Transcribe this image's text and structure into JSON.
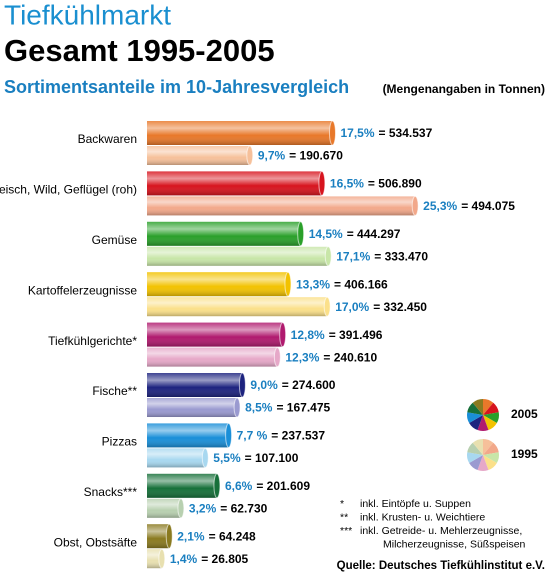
{
  "chart_data": {
    "type": "bar",
    "title": "Tiefkühlmarkt",
    "subtitle": "Gesamt 1995-2005",
    "heading": "Sortimentsanteile im 10-Jahresvergleich",
    "unit_note": "(Mengenangaben in Tonnen)",
    "categories": [
      "Backwaren",
      "Fleisch, Wild, Geflügel (roh)",
      "Gemüse",
      "Kartoffelerzeugnisse",
      "Tiefkühlgerichte*",
      "Fische**",
      "Pizzas",
      "Snacks***",
      "Obst, Obstsäfte"
    ],
    "series": [
      {
        "name": "2005",
        "colors": [
          "#e8782a",
          "#d7141e",
          "#2aa02a",
          "#f2c200",
          "#b01a6e",
          "#1d237f",
          "#1a8fd8",
          "#17703a",
          "#8a7a20"
        ],
        "values": [
          17.5,
          16.5,
          14.5,
          13.3,
          12.8,
          9.0,
          7.7,
          6.6,
          2.1
        ],
        "value_labels": [
          "17,5%",
          "16,5%",
          "14,5%",
          "13,3%",
          "12,8%",
          "9,0%",
          "7,7 %",
          "6,6%",
          "2,1%"
        ],
        "tonnes": [
          534537,
          506890,
          444297,
          406166,
          391496,
          274600,
          237537,
          201609,
          64248
        ],
        "tonnes_labels": [
          "= 534.537",
          "= 506.890",
          "= 444.297",
          "= 406.166",
          "= 391.496",
          "= 274.600",
          "= 237.537",
          "= 201.609",
          "= 64.248"
        ]
      },
      {
        "name": "1995",
        "colors": [
          "#f6c09a",
          "#f2a88a",
          "#c8e6a8",
          "#fbe08a",
          "#e6a8c8",
          "#9a9ad0",
          "#a8d8f0",
          "#b8d0b0",
          "#e8e0b0"
        ],
        "values": [
          9.7,
          25.3,
          17.1,
          17.0,
          12.3,
          8.5,
          5.5,
          3.2,
          1.4
        ],
        "value_labels": [
          "9,7%",
          "25,3%",
          "17,1%",
          "17,0%",
          "12,3%",
          "8,5%",
          "5,5%",
          "3,2%",
          "1,4%"
        ],
        "tonnes": [
          190670,
          494075,
          333470,
          332450,
          240610,
          167475,
          107100,
          62730,
          26805
        ],
        "tonnes_labels": [
          "= 190.670",
          "= 494.075",
          "= 333.470",
          "= 332.450",
          "= 240.610",
          "= 167.475",
          "= 107.100",
          "= 62.730",
          "= 26.805"
        ]
      }
    ],
    "notes": [
      {
        "mark": "*",
        "lines": [
          "inkl. Eintöpfe u. Suppen"
        ]
      },
      {
        "mark": "**",
        "lines": [
          "inkl. Krusten- u. Weichtiere"
        ]
      },
      {
        "mark": "***",
        "lines": [
          "inkl. Getreide- u. Mehlerzeugnisse,",
          "Milcherzeugnisse, Süßspeisen"
        ]
      }
    ],
    "source": "Quelle: Deutsches Tiefkühlinstitut e.V."
  }
}
